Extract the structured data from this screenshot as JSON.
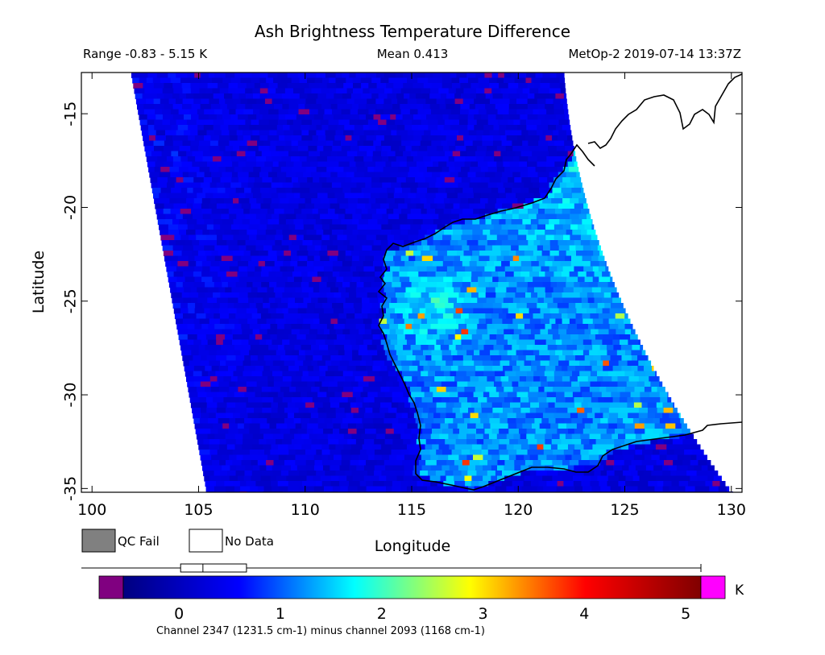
{
  "title": "Ash Brightness Temperature Difference",
  "range_text": "Range -0.83 - 5.15 K",
  "mean_text": "Mean 0.413",
  "sat_text": "MetOp-2 2019-07-14 13:37Z",
  "map": {
    "xlabel": "Longitude",
    "ylabel": "Latitude",
    "lon_range": [
      99.5,
      130.5
    ],
    "lat_range": [
      -35.2,
      -12.8
    ],
    "lon_ticks": [
      100,
      105,
      110,
      115,
      120,
      125,
      130
    ],
    "lat_ticks": [
      -15,
      -20,
      -25,
      -30,
      -35
    ],
    "lon_tick_labels": [
      "100",
      "105",
      "110",
      "115",
      "120",
      "125",
      "130"
    ],
    "lat_tick_labels": [
      "-15",
      "-20",
      "-25",
      "-30",
      "-35"
    ]
  },
  "legend": {
    "qc_fail": "QC Fail",
    "no_data": "No Data",
    "qc_fail_color": "#808080",
    "no_data_color": "#ffffff"
  },
  "colorbar": {
    "unit": "K",
    "min": -0.55,
    "max": 5.15,
    "ticks": [
      0,
      1,
      2,
      3,
      4,
      5
    ],
    "tick_labels": [
      "0",
      "1",
      "2",
      "3",
      "4",
      "5"
    ],
    "under_color": "#800080",
    "over_color": "#ff00ff",
    "colors": [
      "#000080",
      "#0000ff",
      "#00ffff",
      "#ffff00",
      "#ff0000",
      "#800000"
    ],
    "caption": "Channel 2347 (1231.5 cm-1) minus channel 2093 (1168 cm-1)",
    "boxplot": {
      "min": -0.83,
      "q1": 0.0,
      "median": 0.22,
      "q3": 0.65,
      "max": 5.15
    }
  }
}
